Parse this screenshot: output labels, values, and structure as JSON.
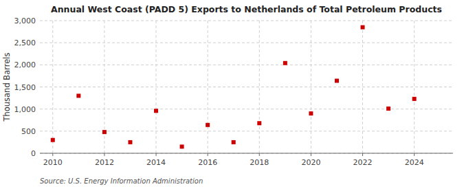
{
  "chart_data": {
    "type": "scatter",
    "title": "Annual West Coast (PADD 5) Exports to Netherlands of Total Petroleum Products",
    "y_label": "Thousand Barrels",
    "annotations": [
      "Source: U.S. Energy Information Administration"
    ],
    "x": [
      2010,
      2011,
      2012,
      2013,
      2014,
      2015,
      2016,
      2017,
      2018,
      2019,
      2020,
      2021,
      2022,
      2023,
      2024
    ],
    "values": [
      300,
      1300,
      480,
      250,
      960,
      150,
      640,
      250,
      680,
      2040,
      900,
      1640,
      2850,
      1010,
      1230
    ],
    "color": "#cc0000",
    "marker": "square",
    "xlim": [
      2009.5,
      2025.5
    ],
    "xticks": [
      2010,
      2012,
      2014,
      2016,
      2018,
      2020,
      2022,
      2024
    ],
    "ylim": [
      0,
      3000
    ],
    "yticks": [
      0,
      500,
      {
        "value": 1000,
        "label": "1,000"
      },
      {
        "value": 1500,
        "label": "1,500"
      },
      {
        "value": 2000,
        "label": "2,000"
      },
      {
        "value": 2500,
        "label": "2,500"
      },
      {
        "value": 3000,
        "label": "3,000"
      }
    ],
    "grid": true
  }
}
